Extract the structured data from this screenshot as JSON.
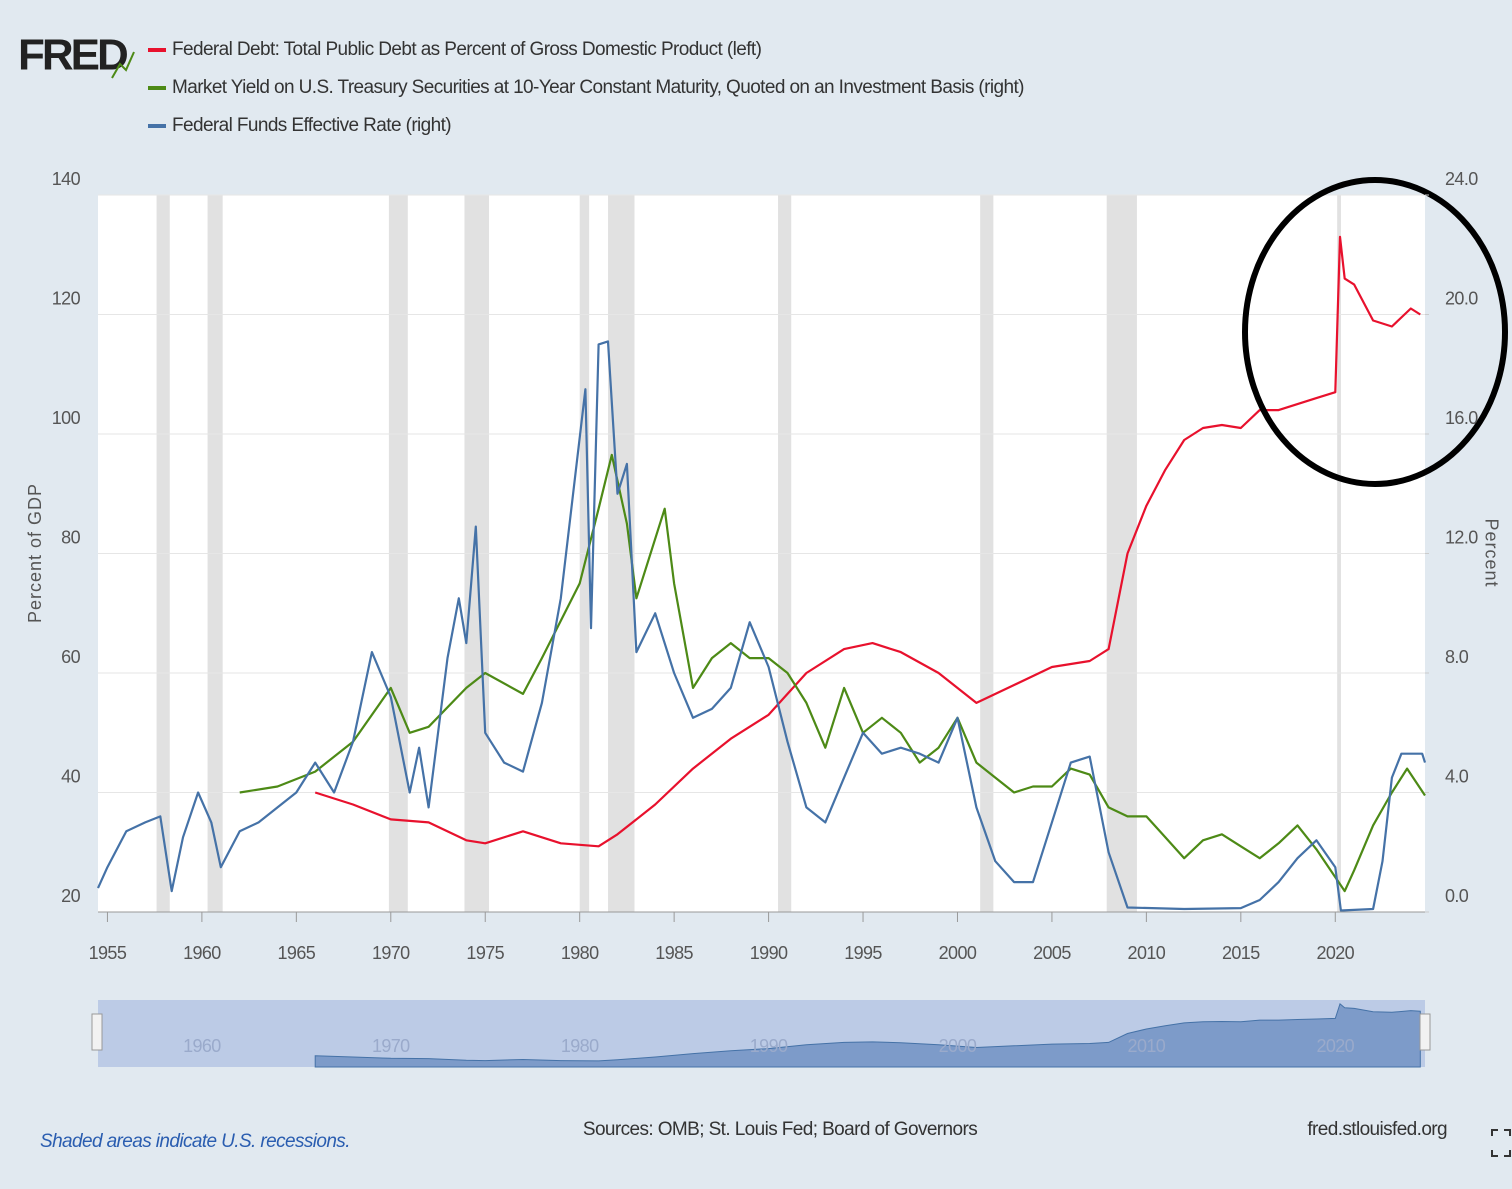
{
  "chart_data": {
    "type": "line",
    "logo": "FRED",
    "xlim": [
      1954.5,
      2024.75
    ],
    "xticks": [
      1955,
      1960,
      1965,
      1970,
      1975,
      1980,
      1985,
      1990,
      1995,
      2000,
      2005,
      2010,
      2015,
      2020
    ],
    "ylim": [
      20,
      140
    ],
    "yticks": [
      20,
      40,
      60,
      80,
      100,
      120,
      140
    ],
    "y2lim": [
      0,
      24
    ],
    "y2ticks": [
      {
        "value": 0,
        "label": "0.0"
      },
      {
        "value": 4,
        "label": "4.0"
      },
      {
        "value": 8,
        "label": "8.0"
      },
      {
        "value": 12,
        "label": "12.0"
      },
      {
        "value": 16,
        "label": "16.0"
      },
      {
        "value": 20,
        "label": "20.0"
      },
      {
        "value": 24,
        "label": "24.0"
      }
    ],
    "ylabel": "Percent of GDP",
    "y2label": "Percent",
    "recessions": [
      [
        1957.6,
        1958.3
      ],
      [
        1960.3,
        1961.1
      ],
      [
        1969.9,
        1970.9
      ],
      [
        1973.9,
        1975.2
      ],
      [
        1980.0,
        1980.5
      ],
      [
        1981.5,
        1982.9
      ],
      [
        1990.5,
        1991.2
      ],
      [
        2001.2,
        2001.9
      ],
      [
        2007.9,
        2009.5
      ],
      [
        2020.1,
        2020.3
      ]
    ],
    "series": [
      {
        "name": "Federal Debt: Total Public Debt as Percent of Gross Domestic Product (left)",
        "color": "#e8112d",
        "axis": "y",
        "x": [
          1966,
          1968,
          1970,
          1972,
          1974,
          1975,
          1977,
          1979,
          1981,
          1982,
          1984,
          1986,
          1988,
          1990,
          1992,
          1994,
          1995.5,
          1997,
          1999,
          2001,
          2003,
          2005,
          2007,
          2008,
          2009,
          2010,
          2011,
          2012,
          2013,
          2014,
          2015,
          2016,
          2017,
          2018,
          2019,
          2020,
          2020.25,
          2020.5,
          2021,
          2022,
          2023,
          2024,
          2024.5
        ],
        "values": [
          40,
          38,
          35.5,
          35,
          32,
          31.5,
          33.5,
          31.5,
          31,
          33,
          38,
          44,
          49,
          53,
          60,
          64,
          65,
          63.5,
          60,
          55,
          58,
          61,
          62,
          64,
          80,
          88,
          94,
          99,
          101,
          101.5,
          101,
          104,
          104,
          105,
          106,
          107,
          133,
          126,
          125,
          119,
          118,
          121,
          120
        ]
      },
      {
        "name": "Market Yield on U.S. Treasury Securities at 10-Year Constant Maturity, Quoted on an Investment Basis (right)",
        "color": "#4d8a16",
        "axis": "y2",
        "x": [
          1962,
          1964,
          1966,
          1968,
          1970,
          1971,
          1972,
          1974,
          1975,
          1977,
          1978,
          1980,
          1981,
          1981.7,
          1982.5,
          1983,
          1984.5,
          1985,
          1986,
          1987,
          1988,
          1989,
          1990,
          1991,
          1992,
          1993,
          1994,
          1995,
          1996,
          1997,
          1998,
          1999,
          2000,
          2001,
          2002,
          2003,
          2004,
          2005,
          2006,
          2007,
          2008,
          2009,
          2010,
          2011,
          2012,
          2013,
          2014,
          2015,
          2016,
          2017,
          2018,
          2019,
          2020.5,
          2021,
          2022,
          2023,
          2023.8,
          2024.75
        ],
        "values": [
          4.0,
          4.2,
          4.7,
          5.7,
          7.5,
          6.0,
          6.2,
          7.5,
          8.0,
          7.3,
          8.5,
          11.0,
          13.5,
          15.3,
          13,
          10.5,
          13.5,
          11,
          7.5,
          8.5,
          9,
          8.5,
          8.5,
          8,
          7,
          5.5,
          7.5,
          6,
          6.5,
          6,
          5,
          5.5,
          6.5,
          5,
          4.5,
          4,
          4.2,
          4.2,
          4.8,
          4.6,
          3.5,
          3.2,
          3.2,
          2.5,
          1.8,
          2.4,
          2.6,
          2.2,
          1.8,
          2.3,
          2.9,
          2.1,
          0.7,
          1.4,
          2.9,
          4.0,
          4.8,
          3.9
        ]
      },
      {
        "name": "Federal Funds Effective Rate (right)",
        "color": "#4572a7",
        "axis": "y2",
        "x": [
          1954.5,
          1955,
          1956,
          1957,
          1957.8,
          1958.4,
          1959,
          1959.8,
          1960.5,
          1961,
          1962,
          1963,
          1964,
          1965,
          1966,
          1967,
          1968,
          1969,
          1970,
          1971,
          1971.5,
          1972,
          1973,
          1973.6,
          1974,
          1974.5,
          1975,
          1976,
          1977,
          1978,
          1979,
          1980.3,
          1980.6,
          1981,
          1981.5,
          1982,
          1982.5,
          1983,
          1984,
          1985,
          1986,
          1987,
          1988,
          1989,
          1990,
          1991,
          1992,
          1993,
          1994,
          1995,
          1996,
          1997,
          1998,
          1999,
          2000,
          2001,
          2002,
          2003,
          2004,
          2005,
          2006,
          2007,
          2008,
          2009,
          2012,
          2015,
          2016,
          2017,
          2018,
          2019,
          2020,
          2020.3,
          2022,
          2022.5,
          2023,
          2023.5,
          2024.6,
          2024.75
        ],
        "values": [
          0.8,
          1.5,
          2.7,
          3.0,
          3.2,
          0.7,
          2.5,
          4.0,
          3.0,
          1.5,
          2.7,
          3.0,
          3.5,
          4.0,
          5.0,
          4.0,
          5.7,
          8.7,
          7.2,
          4.0,
          5.5,
          3.5,
          8.5,
          10.5,
          9.0,
          12.9,
          6,
          5.0,
          4.7,
          7.0,
          10.5,
          17.5,
          9.5,
          19,
          19.1,
          14,
          15,
          8.7,
          10,
          8,
          6.5,
          6.8,
          7.5,
          9.7,
          8.2,
          5.7,
          3.5,
          3.0,
          4.5,
          6.0,
          5.3,
          5.5,
          5.3,
          5.0,
          6.5,
          3.5,
          1.7,
          1.0,
          1.0,
          3.0,
          5.0,
          5.2,
          2.0,
          0.15,
          0.1,
          0.13,
          0.4,
          1.0,
          1.8,
          2.4,
          1.5,
          0.05,
          0.1,
          1.7,
          4.5,
          5.3,
          5.3,
          5.0
        ]
      }
    ],
    "navigator_ticks": [
      1960,
      1970,
      1980,
      1990,
      2000,
      2010,
      2020
    ],
    "note": "Shaded areas indicate U.S. recessions.",
    "source": "Sources: OMB; St. Louis Fed; Board of Governors",
    "site": "fred.stlouisfed.org"
  }
}
